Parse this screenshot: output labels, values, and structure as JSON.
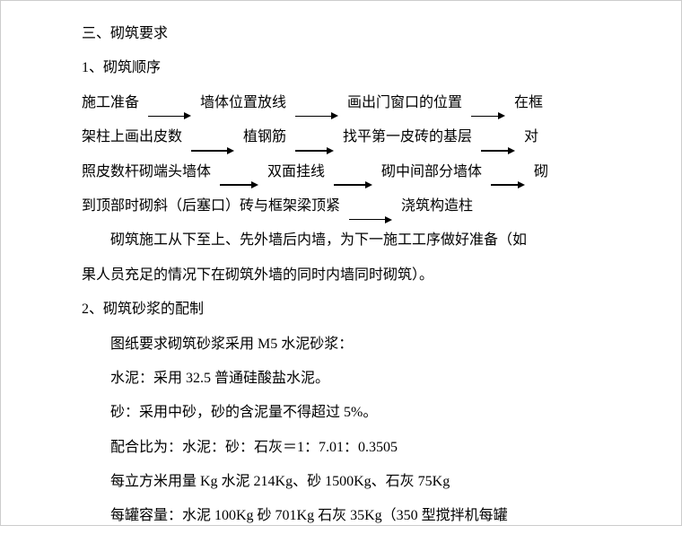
{
  "section_title": "三、砌筑要求",
  "sub1_title": "1、砌筑顺序",
  "flow": {
    "s1": "施工准备",
    "s2": "墙体位置放线",
    "s3": "画出门窗口的位置",
    "s4": "在框",
    "s5": "架柱上画出皮数",
    "s6": "植钢筋",
    "s7": "找平第一皮砖的基层",
    "s8": "对",
    "s9": "照皮数杆砌端头墙体",
    "s10": "双面挂线",
    "s11": "砌中间部分墙体",
    "s12": "砌",
    "s13": "到顶部时砌斜（后塞口）砖与框架梁顶紧",
    "s14": "浇筑构造柱"
  },
  "para1a": "砌筑施工从下至上、先外墙后内墙，为下一施工工序做好准备（如",
  "para1b": "果人员充足的情况下在砌筑外墙的同时内墙同时砌筑）。",
  "sub2_title": "2、砌筑砂浆的配制",
  "p2l1": "图纸要求砌筑砂浆采用 M5 水泥砂浆：",
  "p2l2": "水泥：采用 32.5 普通硅酸盐水泥。",
  "p2l3": "砂：采用中砂，砂的含泥量不得超过 5%。",
  "p2l4": "配合比为：水泥：砂：石灰＝1：7.01：0.3505",
  "p2l5": "每立方米用量 Kg 水泥 214Kg、砂 1500Kg、石灰 75Kg",
  "p2l6": "每罐容量：水泥 100Kg 砂 701Kg 石灰 35Kg（350 型搅拌机每罐",
  "arrow_widths": {
    "w1": 40,
    "w2": 40,
    "w3": 30,
    "w4": 40,
    "w5": 35,
    "w6": 30,
    "w7": 35,
    "w8": 35,
    "w9": 30,
    "w10": 40
  },
  "colors": {
    "text": "#000000",
    "bg": "#ffffff",
    "border": "#cccccc"
  }
}
